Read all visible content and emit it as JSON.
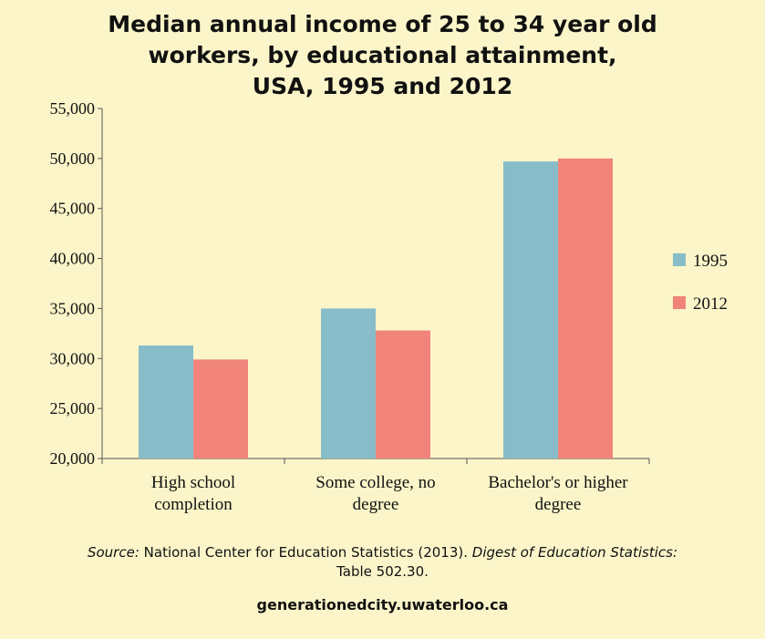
{
  "chart_data": {
    "type": "bar",
    "title_lines": [
      "Median annual income of 25 to 34 year old",
      "workers, by educational attainment,",
      "USA, 1995 and 2012"
    ],
    "categories": [
      [
        "High school",
        "completion"
      ],
      [
        "Some college, no",
        "degree"
      ],
      [
        "Bachelor's or higher",
        "degree"
      ]
    ],
    "series": [
      {
        "name": "1995",
        "color": "#88bcc9",
        "values": [
          31300,
          35000,
          49700
        ]
      },
      {
        "name": "2012",
        "color": "#f0847b",
        "values": [
          29900,
          32800,
          50000
        ]
      }
    ],
    "yticks": [
      "20,000",
      "25,000",
      "30,000",
      "35,000",
      "40,000",
      "45,000",
      "50,000",
      "55,000"
    ],
    "ylim": [
      20000,
      55000
    ],
    "ytick_step": 5000,
    "xlabel": "",
    "ylabel": "",
    "legend_position": "right"
  },
  "source": {
    "label": "Source:",
    "text": "National Center for Education Statistics (2013).",
    "publication": "Digest of Education Statistics:",
    "table": "Table 502.30."
  },
  "footer": "generationedcity.uwaterloo.ca"
}
